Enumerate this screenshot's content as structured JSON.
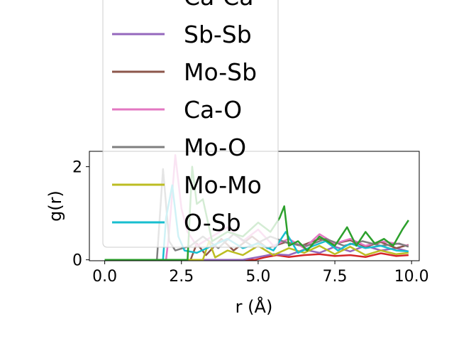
{
  "chart_data": {
    "type": "line",
    "xlabel": "r (Å)",
    "ylabel": "g(r)",
    "xlim": [
      -0.5,
      10.25
    ],
    "ylim": [
      -0.02,
      2.33
    ],
    "x_ticks": [
      "0.0",
      "2.5",
      "5.0",
      "7.5",
      "10.0"
    ],
    "x_tick_values": [
      0,
      2.5,
      5.0,
      7.5,
      10.0
    ],
    "y_ticks": [
      "0",
      "2"
    ],
    "y_tick_values": [
      0,
      2
    ],
    "legend_position": "upper-left (overlapping plot)",
    "grid": false,
    "series": [
      {
        "name": "Ca-Ca",
        "color": "#d62728",
        "points": [
          [
            0,
            0
          ],
          [
            4.9,
            0
          ],
          [
            5.2,
            0.05
          ],
          [
            5.6,
            0.1
          ],
          [
            6.0,
            0.06
          ],
          [
            6.5,
            0.1
          ],
          [
            7.0,
            0.12
          ],
          [
            7.5,
            0.08
          ],
          [
            8.0,
            0.1
          ],
          [
            8.5,
            0.06
          ],
          [
            9.0,
            0.14
          ],
          [
            9.5,
            0.08
          ],
          [
            9.9,
            0.1
          ]
        ]
      },
      {
        "name": "Sb-Sb",
        "color": "#9467bd",
        "points": [
          [
            0,
            0
          ],
          [
            4.5,
            0
          ],
          [
            5.0,
            0.06
          ],
          [
            5.5,
            0.12
          ],
          [
            6.0,
            0.1
          ],
          [
            6.5,
            0.22
          ],
          [
            7.0,
            0.15
          ],
          [
            7.5,
            0.28
          ],
          [
            8.0,
            0.18
          ],
          [
            8.5,
            0.3
          ],
          [
            9.0,
            0.2
          ],
          [
            9.5,
            0.25
          ],
          [
            9.9,
            0.18
          ]
        ]
      },
      {
        "name": "Mo-Sb",
        "color": "#8c564b",
        "points": [
          [
            0,
            0
          ],
          [
            2.8,
            0
          ],
          [
            3.0,
            0.35
          ],
          [
            3.3,
            0.1
          ],
          [
            3.8,
            0.45
          ],
          [
            4.2,
            0.2
          ],
          [
            4.8,
            0.5
          ],
          [
            5.3,
            0.25
          ],
          [
            5.9,
            0.38
          ],
          [
            6.4,
            0.3
          ],
          [
            7.0,
            0.45
          ],
          [
            7.5,
            0.35
          ],
          [
            8.0,
            0.42
          ],
          [
            8.5,
            0.28
          ],
          [
            9.0,
            0.38
          ],
          [
            9.5,
            0.25
          ],
          [
            9.9,
            0.32
          ]
        ]
      },
      {
        "name": "Ca-O",
        "color": "#e377c2",
        "points": [
          [
            0,
            0
          ],
          [
            2.0,
            0
          ],
          [
            2.1,
            0.6
          ],
          [
            2.3,
            2.25
          ],
          [
            2.5,
            1.1
          ],
          [
            2.7,
            0.6
          ],
          [
            3.0,
            0.3
          ],
          [
            3.5,
            0.5
          ],
          [
            4.0,
            0.7
          ],
          [
            4.5,
            0.4
          ],
          [
            5.0,
            0.65
          ],
          [
            5.5,
            0.3
          ],
          [
            6.0,
            0.45
          ],
          [
            6.5,
            0.25
          ],
          [
            7.0,
            0.55
          ],
          [
            7.5,
            0.35
          ],
          [
            8.0,
            0.45
          ],
          [
            8.5,
            0.3
          ],
          [
            9.0,
            0.4
          ],
          [
            9.5,
            0.35
          ],
          [
            9.9,
            0.3
          ]
        ]
      },
      {
        "name": "Mo-O",
        "color": "#7f7f7f",
        "points": [
          [
            0,
            0
          ],
          [
            1.7,
            0
          ],
          [
            1.9,
            1.95
          ],
          [
            2.1,
            0.4
          ],
          [
            2.3,
            0.2
          ],
          [
            2.8,
            0.3
          ],
          [
            3.2,
            0.5
          ],
          [
            3.7,
            0.25
          ],
          [
            4.2,
            0.55
          ],
          [
            4.8,
            0.3
          ],
          [
            5.4,
            0.5
          ],
          [
            6.0,
            0.35
          ],
          [
            6.6,
            0.3
          ],
          [
            7.2,
            0.45
          ],
          [
            7.8,
            0.3
          ],
          [
            8.4,
            0.4
          ],
          [
            9.0,
            0.3
          ],
          [
            9.6,
            0.35
          ],
          [
            9.9,
            0.28
          ]
        ]
      },
      {
        "name": "Mo-Mo",
        "color": "#bcbd22",
        "points": [
          [
            0,
            0
          ],
          [
            3.2,
            0
          ],
          [
            3.4,
            0.4
          ],
          [
            3.6,
            0.05
          ],
          [
            4.0,
            0.2
          ],
          [
            4.5,
            0.1
          ],
          [
            5.0,
            0.3
          ],
          [
            5.5,
            0.1
          ],
          [
            6.0,
            0.25
          ],
          [
            6.5,
            0.15
          ],
          [
            7.0,
            0.3
          ],
          [
            7.5,
            0.12
          ],
          [
            8.0,
            0.28
          ],
          [
            8.5,
            0.1
          ],
          [
            9.0,
            0.2
          ],
          [
            9.5,
            0.12
          ],
          [
            9.9,
            0.15
          ]
        ]
      },
      {
        "name": "O-Sb",
        "color": "#17becf",
        "points": [
          [
            0,
            0
          ],
          [
            1.9,
            0
          ],
          [
            2.0,
            0.9
          ],
          [
            2.2,
            1.6
          ],
          [
            2.4,
            0.5
          ],
          [
            2.6,
            0.2
          ],
          [
            3.0,
            0.15
          ],
          [
            3.5,
            0.3
          ],
          [
            4.0,
            0.45
          ],
          [
            4.5,
            0.25
          ],
          [
            5.0,
            0.35
          ],
          [
            5.5,
            0.2
          ],
          [
            5.9,
            0.6
          ],
          [
            6.3,
            0.15
          ],
          [
            6.8,
            0.3
          ],
          [
            7.2,
            0.4
          ],
          [
            7.6,
            0.2
          ],
          [
            8.0,
            0.35
          ],
          [
            8.5,
            0.25
          ],
          [
            9.0,
            0.3
          ],
          [
            9.5,
            0.2
          ],
          [
            9.9,
            0.18
          ]
        ]
      },
      {
        "name": "",
        "color": "#2ca02c",
        "points": [
          [
            0,
            0
          ],
          [
            2.7,
            0
          ],
          [
            2.85,
            2.0
          ],
          [
            3.0,
            1.2
          ],
          [
            3.2,
            1.3
          ],
          [
            3.5,
            0.4
          ],
          [
            4.0,
            0.6
          ],
          [
            4.5,
            0.5
          ],
          [
            5.0,
            0.8
          ],
          [
            5.4,
            0.6
          ],
          [
            5.7,
            0.9
          ],
          [
            5.85,
            1.15
          ],
          [
            6.0,
            0.3
          ],
          [
            6.3,
            0.4
          ],
          [
            6.6,
            0.2
          ],
          [
            7.0,
            0.5
          ],
          [
            7.5,
            0.3
          ],
          [
            7.9,
            0.7
          ],
          [
            8.2,
            0.3
          ],
          [
            8.5,
            0.6
          ],
          [
            8.8,
            0.35
          ],
          [
            9.1,
            0.45
          ],
          [
            9.4,
            0.3
          ],
          [
            9.7,
            0.65
          ],
          [
            9.9,
            0.85
          ]
        ]
      }
    ],
    "legend_entries": [
      "Ca-Ca",
      "Sb-Sb",
      "Mo-Sb",
      "Ca-O",
      "Mo-O",
      "Mo-Mo",
      "O-Sb"
    ]
  }
}
